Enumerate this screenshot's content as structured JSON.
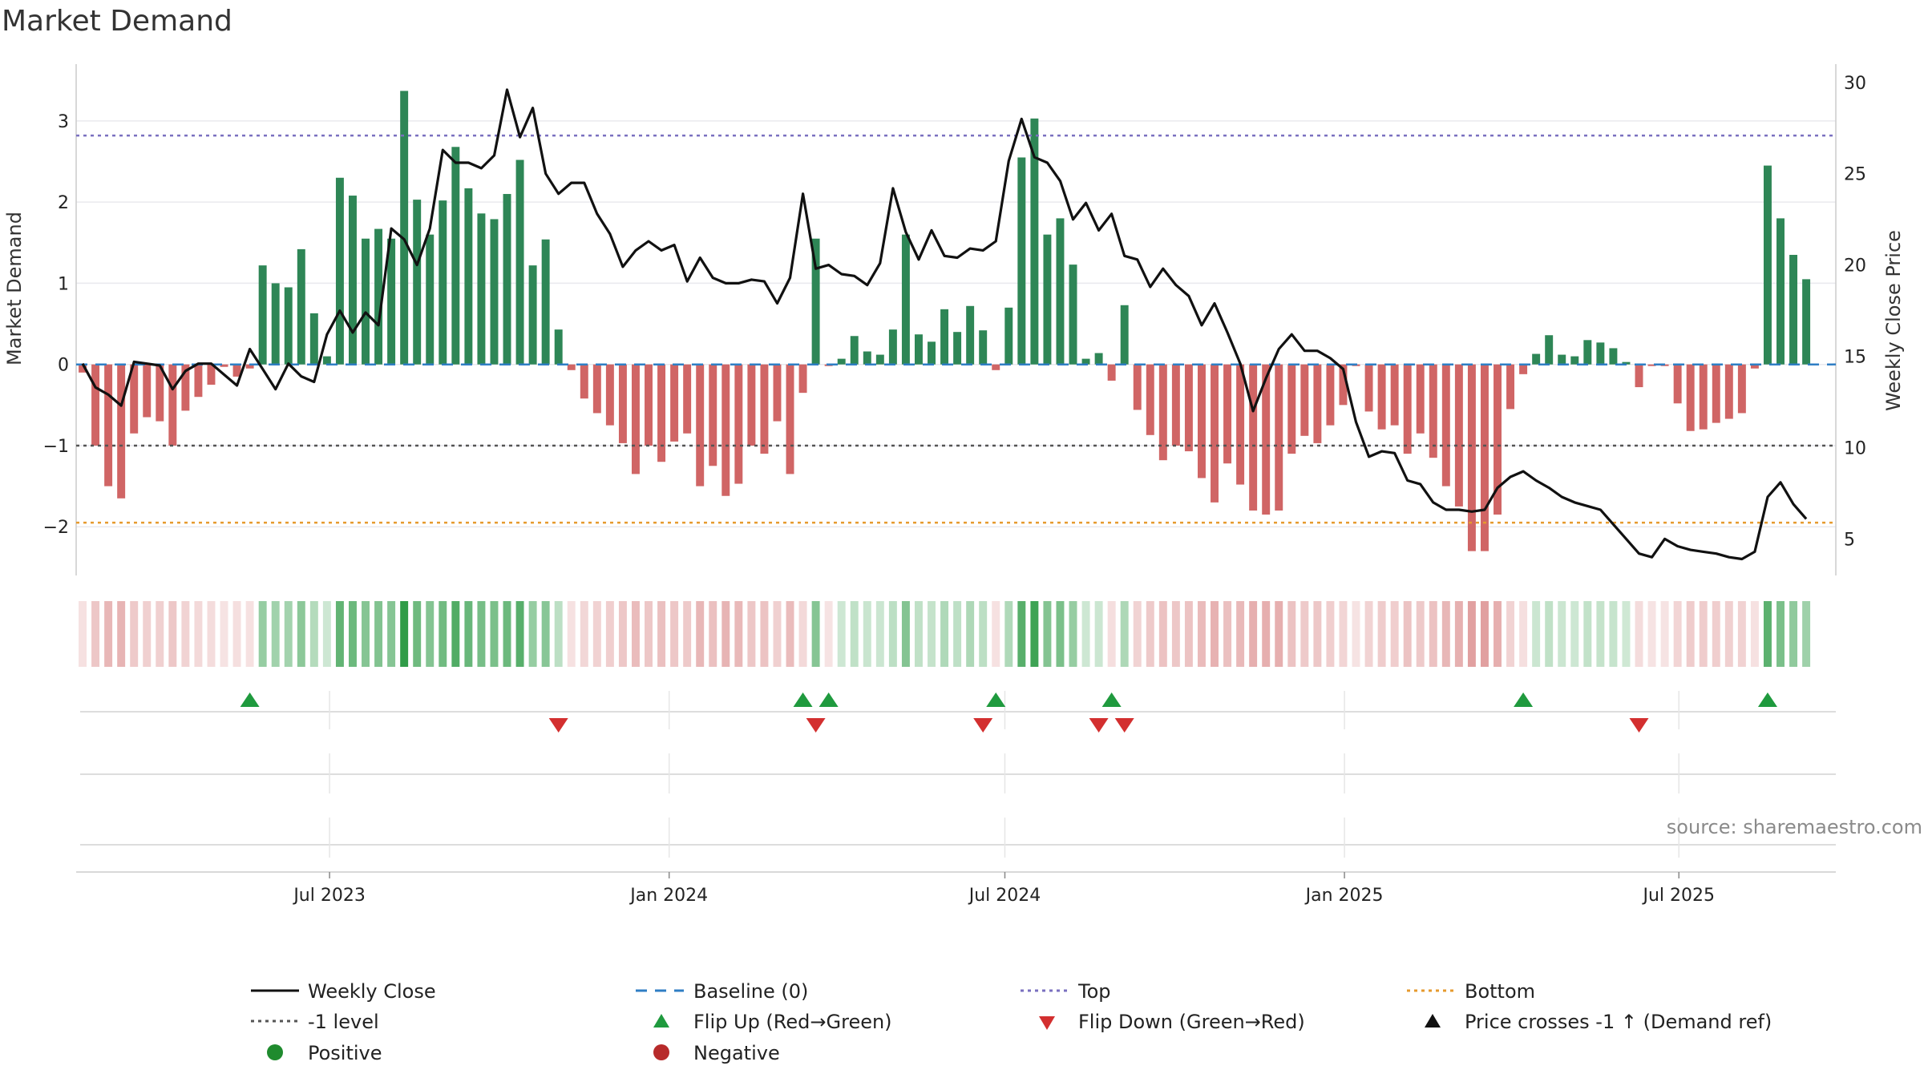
{
  "chart_data": {
    "type": "bar",
    "title": "Market Demand",
    "ylabel_left": "Market Demand",
    "ylabel_right": "Weekly Close Price",
    "ylim_left": [
      -2.6,
      3.7
    ],
    "ylim_right": [
      3,
      31
    ],
    "yticks_left": [
      3,
      2,
      1,
      0,
      -1,
      -2
    ],
    "ytick_labels_left": [
      "3",
      "2",
      "1",
      "0",
      "−1",
      "−2"
    ],
    "yticks_right": [
      30,
      25,
      20,
      15,
      10,
      5
    ],
    "ytick_labels_right": [
      "30",
      "25",
      "20",
      "15",
      "10",
      "5"
    ],
    "x_start": "2023-03-26",
    "x_step_weeks": 1,
    "x_domain_weeks": [
      -0.5,
      136.3
    ],
    "xtick_weeks": [
      19.2,
      45.6,
      71.7,
      98.1,
      124.1
    ],
    "xtick_labels": [
      "Jul 2023",
      "Jan 2024",
      "Jul 2024",
      "Jan 2025",
      "Jul 2025"
    ],
    "demand": [
      -0.1,
      -1.0,
      -1.5,
      -1.65,
      -0.85,
      -0.65,
      -0.7,
      -1.0,
      -0.57,
      -0.4,
      -0.25,
      -0.03,
      -0.15,
      -0.05,
      1.22,
      1.0,
      0.95,
      1.42,
      0.63,
      0.1,
      2.3,
      2.08,
      1.55,
      1.67,
      1.55,
      3.37,
      2.03,
      1.6,
      2.02,
      2.68,
      2.17,
      1.86,
      1.79,
      2.1,
      2.52,
      1.22,
      1.54,
      0.43,
      -0.07,
      -0.42,
      -0.6,
      -0.75,
      -0.97,
      -1.35,
      -1.0,
      -1.2,
      -0.95,
      -0.85,
      -1.5,
      -1.25,
      -1.62,
      -1.47,
      -1.0,
      -1.1,
      -0.7,
      -1.35,
      -0.35,
      1.55,
      -0.02,
      0.07,
      0.35,
      0.16,
      0.12,
      0.43,
      1.6,
      0.37,
      0.28,
      0.68,
      0.4,
      0.72,
      0.42,
      -0.07,
      0.7,
      2.55,
      3.03,
      1.6,
      1.8,
      1.23,
      0.07,
      0.14,
      -0.2,
      0.73,
      -0.56,
      -0.87,
      -1.18,
      -1.0,
      -1.07,
      -1.4,
      -1.7,
      -1.22,
      -1.48,
      -1.8,
      -1.85,
      -1.8,
      -1.1,
      -0.88,
      -0.97,
      -0.75,
      -0.5,
      -0.02,
      -0.58,
      -0.8,
      -0.75,
      -1.1,
      -0.85,
      -1.15,
      -1.5,
      -1.75,
      -2.3,
      -2.3,
      -1.85,
      -0.55,
      -0.12,
      0.13,
      0.36,
      0.12,
      0.1,
      0.3,
      0.27,
      0.2,
      0.03,
      -0.28,
      -0.02,
      -0.02,
      -0.48,
      -0.82,
      -0.8,
      -0.72,
      -0.67,
      -0.6,
      -0.05,
      2.45,
      1.8,
      1.35,
      1.05
    ],
    "close": [
      14.6,
      13.3,
      12.9,
      12.3,
      14.7,
      14.6,
      14.5,
      13.2,
      14.2,
      14.6,
      14.6,
      14.0,
      13.4,
      15.4,
      14.3,
      13.2,
      14.6,
      13.9,
      13.6,
      16.2,
      17.5,
      16.3,
      17.4,
      16.7,
      22.0,
      21.4,
      20.0,
      22.0,
      26.3,
      25.6,
      25.6,
      25.3,
      26.0,
      29.6,
      27.0,
      28.6,
      25.0,
      23.9,
      24.5,
      24.5,
      22.8,
      21.7,
      19.9,
      20.8,
      21.3,
      20.8,
      21.1,
      19.1,
      20.4,
      19.3,
      19.0,
      19.0,
      19.2,
      19.1,
      17.9,
      19.3,
      23.9,
      19.8,
      20.0,
      19.5,
      19.4,
      18.9,
      20.1,
      24.2,
      21.8,
      20.3,
      21.9,
      20.5,
      20.4,
      20.9,
      20.8,
      21.3,
      25.7,
      28.0,
      25.9,
      25.6,
      24.6,
      22.5,
      23.4,
      21.9,
      22.8,
      20.5,
      20.3,
      18.8,
      19.8,
      18.9,
      18.3,
      16.7,
      17.9,
      16.3,
      14.6,
      12.0,
      13.8,
      15.4,
      16.2,
      15.3,
      15.3,
      14.9,
      14.3,
      11.4,
      9.5,
      9.8,
      9.7,
      8.2,
      8.0,
      7.0,
      6.6,
      6.6,
      6.5,
      6.6,
      7.8,
      8.4,
      8.7,
      8.2,
      7.8,
      7.3,
      7.0,
      6.8,
      6.6,
      5.8,
      5.0,
      4.2,
      4.0,
      5.0,
      4.6,
      4.4,
      4.3,
      4.2,
      4.0,
      3.9,
      4.3,
      7.3,
      8.1,
      6.9,
      6.1
    ],
    "levels": {
      "top": 2.82,
      "minus1": -1.0,
      "bottom": -1.95,
      "baseline": 0
    },
    "flip_up_weeks": [
      13,
      56,
      58,
      71,
      80,
      112,
      131
    ],
    "flip_down_weeks": [
      37,
      57,
      70,
      79,
      81,
      121
    ],
    "legend": [
      "Weekly Close",
      "Baseline (0)",
      "Top",
      "Bottom",
      "-1 level",
      "Flip Up (Red→Green)",
      "Flip Down (Green→Red)",
      "Price crosses -1 ↑ (Demand ref)",
      "Positive",
      "Negative"
    ],
    "source": "source: sharemaestro.com"
  },
  "colors": {
    "positive": "#2e8656",
    "negative": "#d06565",
    "close": "#111111",
    "baseline": "#2f7ec4",
    "top": "#7a70c0",
    "minus1": "#555555",
    "bottom": "#e69a2e",
    "flip_up": "#1f9a3e",
    "flip_down": "#d32f2f",
    "legend_positive_dot": "#1f8b2e",
    "legend_negative_dot": "#b72a2a",
    "grid": "#e9e9ee",
    "axis": "#cccccc"
  }
}
